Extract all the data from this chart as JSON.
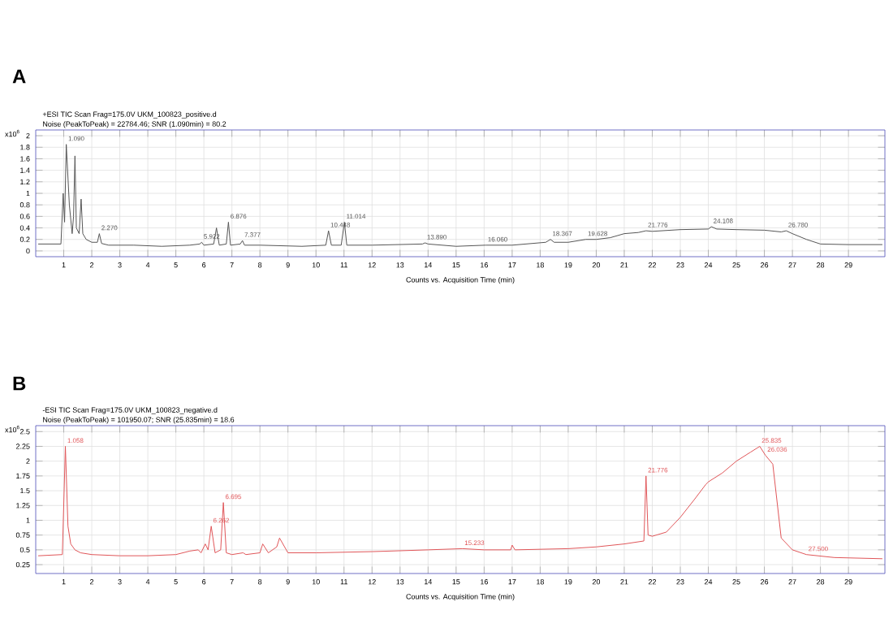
{
  "chart_data": [
    {
      "type": "line",
      "title": "A",
      "subtitle": "+ESI TIC Scan Frag=175.0V UKM_100823_positive.d",
      "xlabel": "Counts vs. Acquisition Time (min)",
      "ylabel": "x10$^{6}$",
      "grid": true,
      "xlim": [
        0,
        30.3
      ],
      "ylim": [
        -0.1,
        2.1
      ],
      "xticks": [
        1,
        2,
        3,
        4,
        5,
        6,
        7,
        8,
        9,
        10,
        11,
        12,
        13,
        14,
        15,
        16,
        17,
        18,
        19,
        20,
        21,
        22,
        23,
        24,
        25,
        26,
        27,
        28,
        29
      ],
      "yticks": [
        0,
        0.2,
        0.4,
        0.6,
        0.8,
        1,
        1.2,
        1.4,
        1.6,
        1.8,
        2
      ],
      "x": [
        0.1,
        0.9,
        0.98,
        1.03,
        1.09,
        1.2,
        1.3,
        1.35,
        1.4,
        1.45,
        1.55,
        1.62,
        1.68,
        1.8,
        2.0,
        2.2,
        2.27,
        2.35,
        2.6,
        3.0,
        3.5,
        4.5,
        5.5,
        5.85,
        5.922,
        6.0,
        6.35,
        6.45,
        6.55,
        6.8,
        6.876,
        6.95,
        7.3,
        7.377,
        7.45,
        8.0,
        9.5,
        10.35,
        10.448,
        10.55,
        10.9,
        11.014,
        11.1,
        12,
        13.8,
        13.89,
        14,
        15,
        16.06,
        17,
        18.2,
        18.367,
        18.5,
        19.0,
        19.628,
        20,
        20.5,
        21,
        21.5,
        21.776,
        22,
        23,
        24,
        24.108,
        24.3,
        25,
        26,
        26.6,
        26.78,
        27,
        27.5,
        28,
        29,
        30.2
      ],
      "series": [
        {
          "color": "#555555",
          "values": [
            0.12,
            0.12,
            1.0,
            0.5,
            1.85,
            0.8,
            0.3,
            0.6,
            1.65,
            0.4,
            0.3,
            0.9,
            0.3,
            0.2,
            0.15,
            0.15,
            0.3,
            0.13,
            0.1,
            0.1,
            0.1,
            0.08,
            0.1,
            0.12,
            0.15,
            0.1,
            0.12,
            0.4,
            0.1,
            0.12,
            0.5,
            0.1,
            0.12,
            0.18,
            0.1,
            0.1,
            0.08,
            0.1,
            0.35,
            0.1,
            0.1,
            0.5,
            0.1,
            0.1,
            0.12,
            0.14,
            0.12,
            0.08,
            0.1,
            0.1,
            0.15,
            0.2,
            0.15,
            0.15,
            0.2,
            0.2,
            0.23,
            0.3,
            0.32,
            0.35,
            0.34,
            0.37,
            0.38,
            0.42,
            0.38,
            0.37,
            0.36,
            0.33,
            0.35,
            0.3,
            0.2,
            0.12,
            0.11,
            0.11
          ]
        }
      ],
      "annotations": [
        "Noise (PeakToPeak) = 22784.46; SNR (1.090min) = 80.2",
        {
          "text": "1.090",
          "x": 1.09,
          "y": 1.85
        },
        {
          "text": "2.270",
          "x": 2.27,
          "y": 0.3
        },
        {
          "text": "5.922",
          "x": 5.922,
          "y": 0.15
        },
        {
          "text": "6.876",
          "x": 6.876,
          "y": 0.5
        },
        {
          "text": "7.377",
          "x": 7.377,
          "y": 0.18
        },
        {
          "text": "10.448",
          "x": 10.448,
          "y": 0.35
        },
        {
          "text": "11.014",
          "x": 11.014,
          "y": 0.5
        },
        {
          "text": "13.890",
          "x": 13.89,
          "y": 0.14
        },
        {
          "text": "16.060",
          "x": 16.06,
          "y": 0.1
        },
        {
          "text": "18.367",
          "x": 18.367,
          "y": 0.2
        },
        {
          "text": "19.628",
          "x": 19.628,
          "y": 0.2
        },
        {
          "text": "21.776",
          "x": 21.776,
          "y": 0.35
        },
        {
          "text": "24.108",
          "x": 24.108,
          "y": 0.42
        },
        {
          "text": "26.780",
          "x": 26.78,
          "y": 0.35
        }
      ]
    },
    {
      "type": "line",
      "title": "B",
      "subtitle": "-ESI TIC Scan Frag=175.0V UKM_100823_negative.d",
      "xlabel": "Counts vs. Acquisition Time (min)",
      "ylabel": "x10$^{6}$",
      "grid": true,
      "xlim": [
        0,
        30.3
      ],
      "ylim": [
        0.1,
        2.6
      ],
      "xticks": [
        1,
        2,
        3,
        4,
        5,
        6,
        7,
        8,
        9,
        10,
        11,
        12,
        13,
        14,
        15,
        16,
        17,
        18,
        19,
        20,
        21,
        22,
        23,
        24,
        25,
        26,
        27,
        28,
        29
      ],
      "yticks": [
        0.25,
        0.5,
        0.75,
        1,
        1.25,
        1.5,
        1.75,
        2,
        2.25,
        2.5
      ],
      "x": [
        0.1,
        0.95,
        1.058,
        1.15,
        1.25,
        1.4,
        1.6,
        2,
        3,
        4,
        5,
        5.5,
        5.8,
        5.9,
        6.05,
        6.15,
        6.262,
        6.4,
        6.6,
        6.695,
        6.8,
        7.0,
        7.4,
        7.5,
        8.0,
        8.1,
        8.3,
        8.6,
        8.7,
        9.0,
        10,
        12,
        14,
        15.233,
        16,
        16.95,
        17,
        17.1,
        19,
        20,
        21,
        21.7,
        21.776,
        21.85,
        22,
        22.5,
        23,
        23.5,
        23.9,
        24,
        24.5,
        25,
        25.5,
        25.835,
        26.036,
        26.3,
        26.6,
        27,
        27.5,
        28.5,
        30.2
      ],
      "series": [
        {
          "color": "#e05558",
          "values": [
            0.4,
            0.42,
            2.25,
            0.9,
            0.6,
            0.5,
            0.45,
            0.42,
            0.4,
            0.4,
            0.42,
            0.48,
            0.5,
            0.45,
            0.6,
            0.5,
            0.9,
            0.45,
            0.5,
            1.3,
            0.45,
            0.42,
            0.45,
            0.42,
            0.45,
            0.6,
            0.45,
            0.55,
            0.7,
            0.45,
            0.45,
            0.47,
            0.5,
            0.52,
            0.5,
            0.5,
            0.58,
            0.5,
            0.52,
            0.55,
            0.6,
            0.65,
            1.75,
            0.75,
            0.73,
            0.8,
            1.05,
            1.35,
            1.6,
            1.65,
            1.8,
            2.0,
            2.15,
            2.25,
            2.1,
            1.95,
            0.7,
            0.5,
            0.42,
            0.37,
            0.35
          ]
        }
      ],
      "annotations": [
        "Noise (PeakToPeak) = 101950.07; SNR (25.835min) = 18.6",
        {
          "text": "1.058",
          "x": 1.058,
          "y": 2.25
        },
        {
          "text": "6.262",
          "x": 6.262,
          "y": 0.9
        },
        {
          "text": "6.695",
          "x": 6.695,
          "y": 1.3
        },
        {
          "text": "15.233",
          "x": 15.233,
          "y": 0.52
        },
        {
          "text": "21.776",
          "x": 21.776,
          "y": 1.75
        },
        {
          "text": "25.835",
          "x": 25.835,
          "y": 2.25
        },
        {
          "text": "26.036",
          "x": 26.036,
          "y": 2.1
        },
        {
          "text": "27.500",
          "x": 27.5,
          "y": 0.42
        }
      ]
    }
  ]
}
